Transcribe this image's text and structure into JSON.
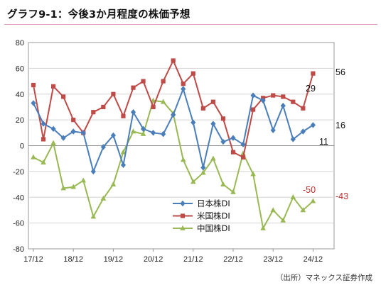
{
  "title": "グラフ9-1：今後3か月程度の株価予想",
  "source": "（出所）マネックス証券作成",
  "chart_data": {
    "type": "line",
    "ylim": [
      -80,
      80
    ],
    "yticks": [
      -80,
      -60,
      -40,
      -20,
      0,
      20,
      40,
      60,
      80
    ],
    "xtick_labels": [
      "17/12",
      "18/12",
      "19/12",
      "20/12",
      "21/12",
      "22/12",
      "23/12",
      "24/12"
    ],
    "grid": true,
    "legend": "center",
    "series": [
      {
        "name": "日本株DI",
        "color": "#4a7ebb",
        "marker": "diamond",
        "values": [
          33,
          17,
          13,
          6,
          11,
          10,
          -20,
          -1,
          8,
          -15,
          26,
          13,
          10,
          9,
          24,
          44,
          18,
          -17,
          17,
          3,
          6,
          1,
          39,
          35,
          12,
          31,
          5,
          11,
          16
        ]
      },
      {
        "name": "米国株DI",
        "color": "#be4b48",
        "marker": "square",
        "values": [
          47,
          5,
          46,
          38,
          20,
          10,
          26,
          30,
          40,
          23,
          45,
          50,
          30,
          50,
          66,
          48,
          56,
          29,
          34,
          21,
          -5,
          -9,
          28,
          37,
          39,
          38,
          34,
          29,
          56
        ]
      },
      {
        "name": "中国株DI",
        "color": "#98b954",
        "marker": "triangle",
        "values": [
          -9,
          -13,
          2,
          -33,
          -32,
          -27,
          -55,
          -41,
          -30,
          -5,
          11,
          9,
          35,
          34,
          25,
          -11,
          -28,
          -21,
          -10,
          -30,
          -36,
          -6,
          -22,
          -64,
          -50,
          -58,
          -40,
          -50,
          -43
        ]
      }
    ],
    "annotations": [
      {
        "text": "56",
        "series": "米国株DI",
        "color": "#111111"
      },
      {
        "text": "29",
        "series": "米国株DI",
        "color": "#111111"
      },
      {
        "text": "16",
        "series": "日本株DI",
        "color": "#111111"
      },
      {
        "text": "11",
        "series": "日本株DI",
        "color": "#111111"
      },
      {
        "text": "-50",
        "series": "中国株DI",
        "color": "#c0302e"
      },
      {
        "text": "-43",
        "series": "中国株DI",
        "color": "#c0302e"
      }
    ]
  }
}
